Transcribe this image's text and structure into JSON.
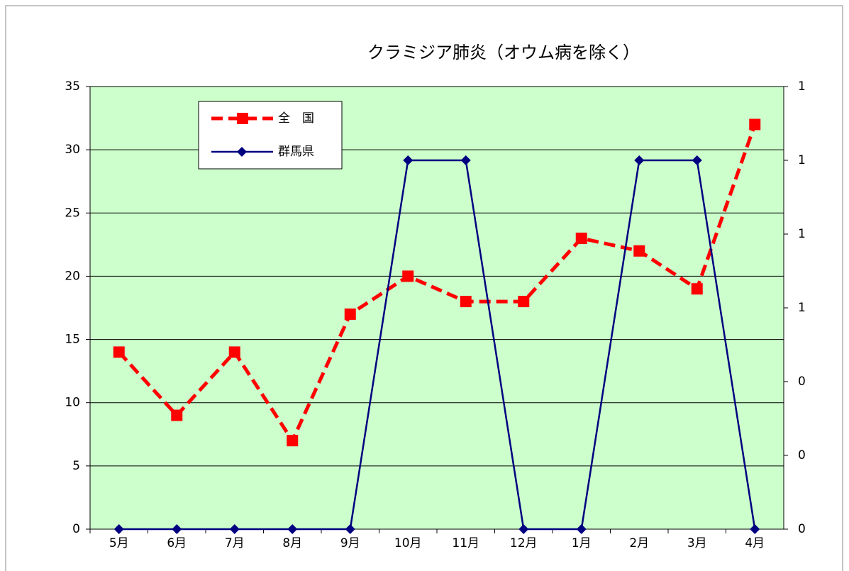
{
  "chart_data": {
    "type": "line",
    "title": "クラミジア肺炎（オウム病を除く）",
    "categories": [
      "5月",
      "6月",
      "7月",
      "8月",
      "9月",
      "10月",
      "11月",
      "12月",
      "1月",
      "2月",
      "3月",
      "4月"
    ],
    "series": [
      {
        "name": "全　国",
        "color": "#ff0000",
        "values": [
          14,
          9,
          14,
          7,
          17,
          20,
          18,
          18,
          23,
          22,
          19,
          32
        ]
      },
      {
        "name": "群馬県",
        "color": "#000080",
        "axis": "y2",
        "values": [
          0,
          0,
          0,
          0,
          0,
          1,
          1,
          0,
          0,
          1,
          1,
          0
        ]
      }
    ],
    "ylim": [
      0,
      35
    ],
    "yticks": [
      0,
      5,
      10,
      15,
      20,
      25,
      30,
      35
    ],
    "y2lim": [
      0,
      1.2
    ],
    "y2ticks": [
      0,
      {
        "value": 0.2,
        "label": "0"
      },
      {
        "value": 0.4,
        "label": "0"
      },
      {
        "value": 0.6,
        "label": "1"
      },
      {
        "value": 0.8,
        "label": "1"
      },
      1,
      {
        "value": 1.2,
        "label": "1"
      }
    ],
    "grid": true,
    "plot_background": "#ccffcc"
  }
}
